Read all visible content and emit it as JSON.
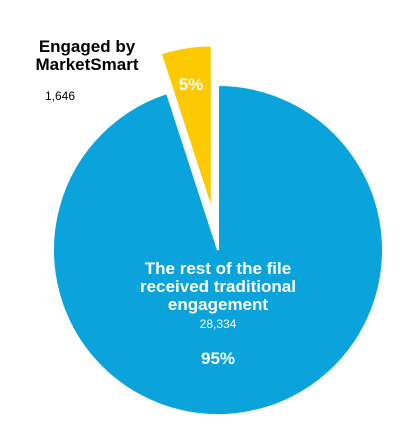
{
  "chart_data": {
    "type": "pie",
    "categories": [
      "Engaged by MarketSmart",
      "The rest of the file received traditional engagement"
    ],
    "values": [
      5,
      95
    ],
    "value_labels": [
      "5%",
      "95%"
    ],
    "counts": [
      1646,
      28334
    ],
    "count_labels": [
      "1,646",
      "28,334"
    ],
    "colors": [
      "#fdc900",
      "#0ba3dc"
    ],
    "exploded": [
      true,
      false
    ]
  }
}
